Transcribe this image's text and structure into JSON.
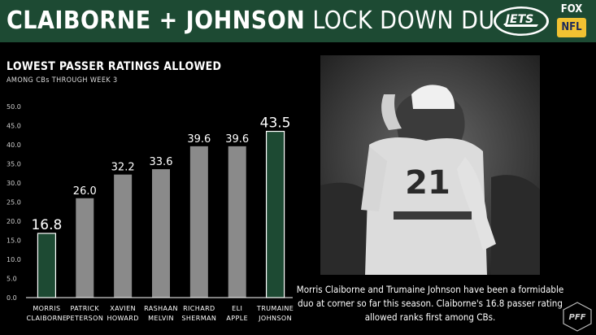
{
  "header": {
    "title_bold": "CLAIBORNE + JOHNSON",
    "title_light": "LOCK DOWN DUO",
    "team_logo_text": "JETS",
    "network": "FOX",
    "league": "NFL"
  },
  "chart_data": {
    "type": "bar",
    "title": "LOWEST PASSER RATINGS ALLOWED",
    "subtitle": "AMONG CBs THROUGH WEEK 3",
    "categories": [
      [
        "MORRIS",
        "CLAIBORNE"
      ],
      [
        "PATRICK",
        "PETERSON"
      ],
      [
        "XAVIEN",
        "HOWARD"
      ],
      [
        "RASHAAN",
        "MELVIN"
      ],
      [
        "RICHARD",
        "SHERMAN"
      ],
      [
        "ELI",
        "APPLE"
      ],
      [
        "TRUMAINE",
        "JOHNSON"
      ]
    ],
    "values": [
      16.8,
      26.0,
      32.2,
      33.6,
      39.6,
      39.6,
      43.5
    ],
    "value_labels": [
      "16.8",
      "26.0",
      "32.2",
      "33.6",
      "39.6",
      "39.6",
      "43.5"
    ],
    "highlighted": [
      true,
      false,
      false,
      false,
      false,
      false,
      true
    ],
    "ylim": [
      0,
      50
    ],
    "yticks": [
      "0.0",
      "5.0",
      "10.0",
      "15.0",
      "20.0",
      "25.0",
      "30.0",
      "35.0",
      "40.0",
      "45.0",
      "50.0"
    ],
    "xlabel": "",
    "ylabel": "",
    "grid": false,
    "colors": {
      "highlight": "#1d4a33",
      "highlight_stroke": "#ffffff",
      "default": "#8a8a8a"
    }
  },
  "caption": "Morris Claiborne and Trumaine Johnson have been a formidable duo at corner so far this season. Claiborne's 16.8 passer rating allowed ranks first among CBs.",
  "pff_logo_text": "PFF",
  "photo_jersey_number": "21",
  "colors": {
    "brand_green": "#1d4a33",
    "background": "#000000",
    "nfl_yellow": "#f1c232"
  }
}
